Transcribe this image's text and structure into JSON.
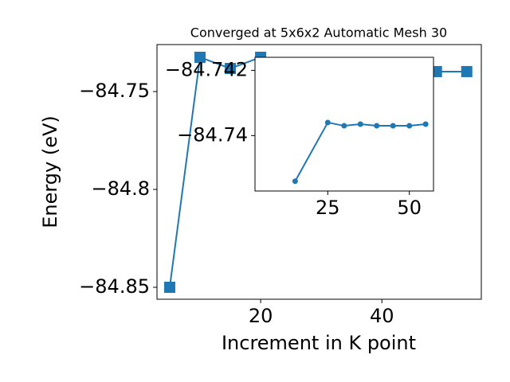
{
  "chart_data": [
    {
      "type": "line",
      "title": "Converged at 5x6x2 Automatic Mesh 30",
      "xlabel": "Increment in K point",
      "ylabel": "Energy (eV)",
      "x": [
        5,
        10,
        15,
        20,
        49,
        54
      ],
      "series": [
        {
          "name": "Energy",
          "color": "#1f77b4",
          "marker": "square",
          "values": [
            -84.85,
            -84.7325,
            -84.7382,
            -84.7325,
            -84.7398,
            -84.7398
          ]
        }
      ],
      "xlim": [
        2.9,
        56.4
      ],
      "xticks": [
        20,
        40
      ],
      "ylim": [
        -84.8561,
        -84.726
      ],
      "yticks": [
        -84.85,
        -84.8,
        -84.75
      ]
    },
    {
      "type": "line",
      "x": [
        15,
        25,
        30,
        35,
        40,
        45,
        50,
        55
      ],
      "series": [
        {
          "name": "Energy",
          "color": "#1f77b4",
          "marker": "circle",
          "values": [
            -84.7386,
            -84.7404,
            -84.7403,
            -84.74035,
            -84.7403,
            -84.7403,
            -84.7403,
            -84.74035
          ]
        }
      ],
      "xlim": [
        2.7,
        57.4
      ],
      "xticks": [
        25,
        50
      ],
      "ylim": [
        -84.7383,
        -84.7424
      ],
      "yticks": [
        -84.742,
        -84.74
      ]
    }
  ]
}
